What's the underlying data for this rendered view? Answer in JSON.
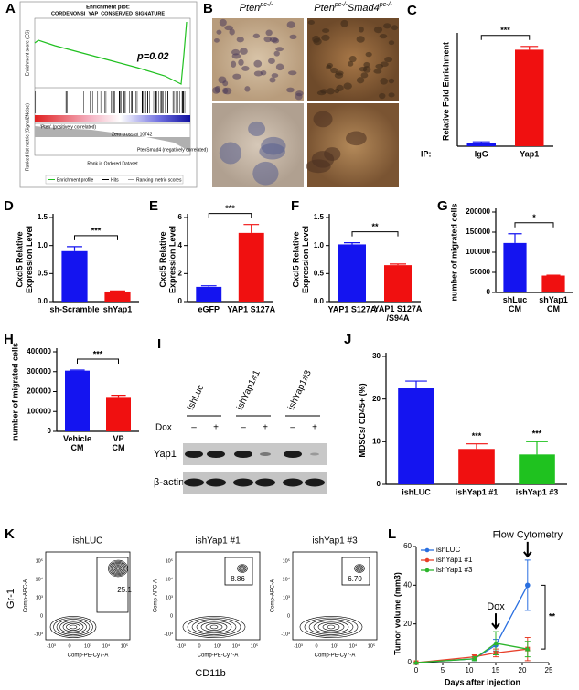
{
  "enrichment": {
    "panel": "A",
    "title": "Enrichment plot:",
    "subtitle": "CORDENONSI_YAP_CONSERVED_SIGNATURE",
    "annotation": "p=0.02",
    "ylabel": "Enrichment score (ES)",
    "ylabel2": "Ranked list metric (Signal2Noise)",
    "xlabel": "Rank in Ordered Dataset",
    "pos_label": "'Pten' (positively correlated)",
    "neg_label": "PtenSmad4 (negatively correlated)",
    "zero_cross": "Zero cross at 10742",
    "legend": [
      "Enrichment profile",
      "Hits",
      "Ranking metric scores"
    ]
  },
  "histology": {
    "panel": "B",
    "columns": [
      [
        "Pten",
        "pc-/-"
      ],
      [
        "Pten",
        "pc-/-",
        "Smad4",
        "pc-/-"
      ]
    ]
  },
  "blot": {
    "panel": "I",
    "lanes": [
      "ishLuc",
      "ishYap1#1",
      "ishYap1#3"
    ],
    "treatment": "Dox",
    "signs": [
      "–",
      "+",
      "–",
      "+",
      "–",
      "+"
    ],
    "rows": [
      "Yap1",
      "β-actin"
    ]
  },
  "flow": {
    "panel": "K",
    "titles": [
      "ishLUC",
      "ishYap1 #1",
      "ishYap1 #3"
    ],
    "gates": [
      "25.1",
      "8.86",
      "6.70"
    ],
    "ylabel": "Gr-1",
    "xlabel": "CD11b",
    "y_channel": "Comp-APC-A",
    "x_channel": "Comp-PE-Cy7-A",
    "tick_labels": [
      "-10³",
      "0",
      "10³",
      "10⁴",
      "10⁵"
    ]
  },
  "chart_data": [
    {
      "type": "bar",
      "panel": "C",
      "ylabel": "Relative Fold Enrichment",
      "category_label": "IP:",
      "categories": [
        "IgG",
        "Yap1"
      ],
      "values": [
        0.3,
        8.8
      ],
      "errors": [
        0.1,
        0.3
      ],
      "colors": [
        "#1414f0",
        "#f01010"
      ],
      "ylim": [
        0,
        10
      ],
      "significance": "***"
    },
    {
      "type": "bar",
      "panel": "D",
      "ylabel": "Cxcl5 Relative\nExpression Level",
      "categories": [
        "sh-Scramble",
        "shYap1"
      ],
      "values": [
        0.9,
        0.18
      ],
      "errors": [
        0.08,
        0.01
      ],
      "colors": [
        "#1414f0",
        "#f01010"
      ],
      "ylim": [
        0,
        1.5
      ],
      "yticks": [
        {
          "value": 0,
          "label": "0.0"
        },
        0.5,
        {
          "value": 1,
          "label": "1.0"
        },
        1.5
      ],
      "significance": "***"
    },
    {
      "type": "bar",
      "panel": "E",
      "ylabel": "Cxcl5 Relative\nExpression Level",
      "categories": [
        "eGFP",
        "YAP1 S127A"
      ],
      "values": [
        1.05,
        4.9
      ],
      "errors": [
        0.08,
        0.6
      ],
      "colors": [
        "#1414f0",
        "#f01010"
      ],
      "ylim": [
        0,
        6
      ],
      "yticks": [
        0,
        2,
        4,
        6
      ],
      "significance": "***"
    },
    {
      "type": "bar",
      "panel": "F",
      "ylabel": "Cxcl5 Relative\nExpression Level",
      "categories": [
        "YAP1 S127A",
        "YAP1 S127A\n/S94A"
      ],
      "values": [
        1.02,
        0.65
      ],
      "errors": [
        0.03,
        0.02
      ],
      "colors": [
        "#1414f0",
        "#f01010"
      ],
      "ylim": [
        0,
        1.5
      ],
      "yticks": [
        {
          "value": 0,
          "label": "0.0"
        },
        0.5,
        {
          "value": 1,
          "label": "1.0"
        },
        1.5
      ],
      "significance": "**"
    },
    {
      "type": "bar",
      "panel": "G",
      "ylabel": "number of migrated cells",
      "categories": [
        "shLuc\nCM",
        "shYap1\nCM"
      ],
      "values": [
        123000,
        42000
      ],
      "errors": [
        23000,
        1000
      ],
      "colors": [
        "#1414f0",
        "#f01010"
      ],
      "ylim": [
        0,
        200000
      ],
      "yticks": [
        0,
        50000,
        100000,
        150000,
        200000
      ],
      "significance": "*"
    },
    {
      "type": "bar",
      "panel": "H",
      "ylabel": "number of migrated cells",
      "categories": [
        "Vehicle\nCM",
        "VP\nCM"
      ],
      "values": [
        305000,
        173000
      ],
      "errors": [
        3000,
        8000
      ],
      "colors": [
        "#1414f0",
        "#f01010"
      ],
      "ylim": [
        0,
        400000
      ],
      "yticks": [
        0,
        100000,
        200000,
        300000,
        400000
      ],
      "significance": "***"
    },
    {
      "type": "bar",
      "panel": "J",
      "ylabel": "MDSCs/ CD45+ (%)",
      "categories": [
        "ishLUC",
        "ishYap1 #1",
        "ishYap1 #3"
      ],
      "values": [
        22.5,
        8.3,
        7
      ],
      "errors": [
        1.7,
        1.2,
        3
      ],
      "colors": [
        "#1414f0",
        "#f01010",
        "#1fc21f"
      ],
      "ylim": [
        0,
        30
      ],
      "yticks": [
        0,
        10,
        20,
        30
      ],
      "bar_annotations": [
        null,
        "***",
        "***"
      ]
    },
    {
      "type": "line",
      "panel": "L",
      "xlabel": "Days after injection",
      "ylabel": "Tumor volume (mm3)",
      "x": [
        0,
        11,
        15,
        21
      ],
      "xlim": [
        0,
        25
      ],
      "xticks": [
        0,
        5,
        10,
        15,
        20,
        25
      ],
      "ylim": [
        0,
        60
      ],
      "yticks": [
        0,
        20,
        40,
        60
      ],
      "series": [
        {
          "name": "ishLUC",
          "color": "#2a6fe0",
          "marker": "circle",
          "values": [
            0,
            2,
            9,
            40
          ],
          "errors": [
            0,
            1,
            3,
            13
          ]
        },
        {
          "name": "ishYap1 #1",
          "color": "#e8402a",
          "marker": "square",
          "values": [
            0,
            3,
            5,
            7
          ],
          "errors": [
            0,
            1,
            2,
            6
          ]
        },
        {
          "name": "ishYap1 #3",
          "color": "#2cb52c",
          "marker": "triangle",
          "values": [
            0,
            2,
            10,
            7
          ],
          "errors": [
            0,
            1,
            6,
            4
          ]
        }
      ],
      "annotations": [
        {
          "text": "Flow Cytometry",
          "x": 21
        },
        {
          "text": "Dox",
          "x": 15
        }
      ],
      "significance": "**"
    }
  ]
}
